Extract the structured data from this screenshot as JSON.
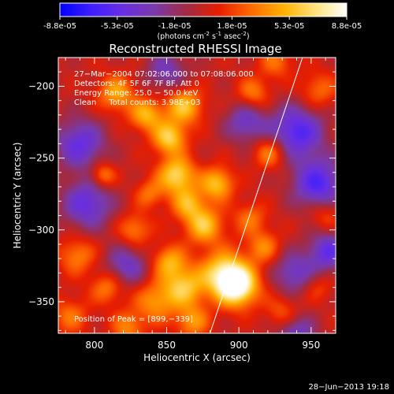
{
  "colorbar": {
    "ticks": [
      "-8.8e-05",
      "-5.3e-05",
      "-1.8e-05",
      "1.8e-05",
      "5.3e-05",
      "8.8e-05"
    ],
    "units_main": "(photons cm",
    "units_sup1": "-2",
    "units_mid1": " s",
    "units_sup2": "-1",
    "units_mid2": " asec",
    "units_sup3": "-2",
    "units_end": ")",
    "colors": [
      "#0000ff",
      "#3f1fff",
      "#6a2fe0",
      "#7a3aa8",
      "#a42a40",
      "#e81e00",
      "#ff6a00",
      "#ffb000",
      "#ffe27a",
      "#ffffff"
    ]
  },
  "chart_data": {
    "type": "heatmap",
    "title": "Reconstructed RHESSI Image",
    "xlabel": "Heliocentric X (arcsec)",
    "ylabel": "Heliocentric Y (arcsec)",
    "xlim": [
      775,
      967
    ],
    "ylim": [
      -372,
      -180
    ],
    "xticks": [
      800,
      850,
      900,
      950
    ],
    "yticks": [
      -200,
      -250,
      -300,
      -350
    ],
    "xtick_labels": [
      "800",
      "850",
      "900",
      "950"
    ],
    "ytick_labels": [
      "−200",
      "−250",
      "−300",
      "−350"
    ],
    "value_range": [
      -8.8e-05,
      8.8e-05
    ],
    "limb_line": {
      "from": [
        880,
        -372
      ],
      "to": [
        944,
        -180
      ]
    },
    "peak": [
      899,
      -339
    ],
    "annotations": [
      "27−Mar−2004 07:02:06.000 to 07:08:06.000",
      "Detectors: 4F 5F 6F 7F 8F, Att 0",
      "Energy Range: 25.0 − 50.0 keV",
      "Clean     Total counts: 3.98E+03"
    ],
    "peak_label": "Position of Peak = [899,−339]",
    "blobs": [
      {
        "x": 899,
        "y": -339,
        "amp": 8.8e-05,
        "r": 10
      },
      {
        "x": 889,
        "y": -330,
        "amp": 6e-05,
        "r": 11
      },
      {
        "x": 862,
        "y": -340,
        "amp": 5.5e-05,
        "r": 10
      },
      {
        "x": 852,
        "y": -322,
        "amp": 4.5e-05,
        "r": 8
      },
      {
        "x": 842,
        "y": -350,
        "amp": 4e-05,
        "r": 10
      },
      {
        "x": 876,
        "y": -297,
        "amp": 5.5e-05,
        "r": 9
      },
      {
        "x": 865,
        "y": -282,
        "amp": 4.5e-05,
        "r": 8
      },
      {
        "x": 885,
        "y": -268,
        "amp": 5.5e-05,
        "r": 8
      },
      {
        "x": 857,
        "y": -262,
        "amp": 6.5e-05,
        "r": 9
      },
      {
        "x": 852,
        "y": -236,
        "amp": 6e-05,
        "r": 8
      },
      {
        "x": 862,
        "y": -214,
        "amp": 5.5e-05,
        "r": 9
      },
      {
        "x": 836,
        "y": -220,
        "amp": 5e-05,
        "r": 8
      },
      {
        "x": 815,
        "y": -205,
        "amp": 4.5e-05,
        "r": 9
      },
      {
        "x": 910,
        "y": -205,
        "amp": 3.5e-05,
        "r": 8
      },
      {
        "x": 926,
        "y": -183,
        "amp": 3e-05,
        "r": 8
      },
      {
        "x": 922,
        "y": -246,
        "amp": 4e-05,
        "r": 8
      },
      {
        "x": 908,
        "y": -292,
        "amp": 3e-05,
        "r": 8
      },
      {
        "x": 917,
        "y": -312,
        "amp": 3.5e-05,
        "r": 8
      },
      {
        "x": 788,
        "y": -318,
        "amp": 3.5e-05,
        "r": 9
      },
      {
        "x": 783,
        "y": -360,
        "amp": 3e-05,
        "r": 9
      },
      {
        "x": 809,
        "y": -340,
        "amp": 3.5e-05,
        "r": 8
      },
      {
        "x": 828,
        "y": -300,
        "amp": 3.5e-05,
        "r": 8
      },
      {
        "x": 806,
        "y": -262,
        "amp": 4e-05,
        "r": 6
      },
      {
        "x": 838,
        "y": -275,
        "amp": 3e-05,
        "r": 7
      },
      {
        "x": 955,
        "y": -203,
        "amp": 3e-05,
        "r": 9
      },
      {
        "x": 960,
        "y": -290,
        "amp": 2.5e-05,
        "r": 8
      },
      {
        "x": 930,
        "y": -357,
        "amp": 2.5e-05,
        "r": 8
      },
      {
        "x": 955,
        "y": -340,
        "amp": 2e-05,
        "r": 7
      },
      {
        "x": 823,
        "y": -368,
        "amp": 3.5e-05,
        "r": 8
      },
      {
        "x": 868,
        "y": -364,
        "amp": 4e-05,
        "r": 8
      },
      {
        "x": 790,
        "y": -240,
        "amp": -5e-05,
        "r": 12
      },
      {
        "x": 795,
        "y": -282,
        "amp": -5e-05,
        "r": 12
      },
      {
        "x": 940,
        "y": -232,
        "amp": -6e-05,
        "r": 13
      },
      {
        "x": 955,
        "y": -268,
        "amp": -6e-05,
        "r": 12
      },
      {
        "x": 938,
        "y": -330,
        "amp": -4e-05,
        "r": 10
      },
      {
        "x": 962,
        "y": -315,
        "amp": -5e-05,
        "r": 10
      },
      {
        "x": 905,
        "y": -225,
        "amp": -4e-05,
        "r": 10
      },
      {
        "x": 822,
        "y": -325,
        "amp": -4e-05,
        "r": 10
      },
      {
        "x": 850,
        "y": -190,
        "amp": -3.5e-05,
        "r": 10
      },
      {
        "x": 940,
        "y": -372,
        "amp": -4e-05,
        "r": 9
      }
    ]
  },
  "footer": {
    "date": "28−Jun−2013 19:18"
  }
}
